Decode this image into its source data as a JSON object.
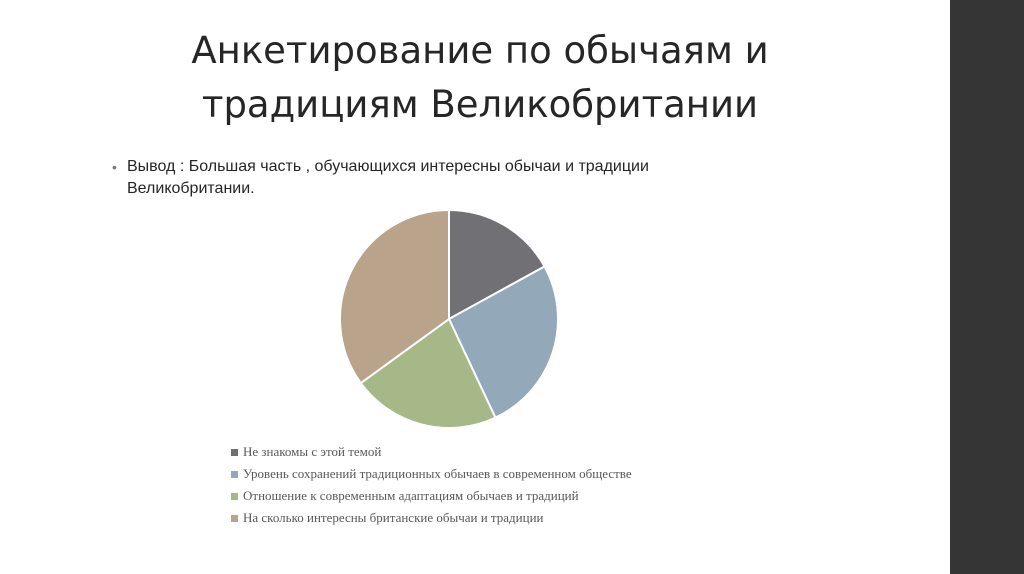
{
  "slide": {
    "title_line1": "Анкетирование по обычаям и",
    "title_line2": "традициям Великобритании",
    "bullet_symbol": "•",
    "bullet_line1": "Вывод : Большая часть , обучающихся интересны обычаи и традиции",
    "bullet_line2": "Великобритании."
  },
  "chart_data": {
    "type": "pie",
    "title": "",
    "legend_position": "bottom",
    "start_angle_deg": 0,
    "direction": "clockwise",
    "categories": [
      "Не знакомы с этой темой",
      "Уровень сохранений традиционных обычаев в современном обществе",
      "Отношение к современным адаптациям обычаев и традиций",
      "На сколько интересны британские обычаи и традиции"
    ],
    "values": [
      17,
      26,
      22,
      35
    ],
    "colors": [
      "#717075",
      "#93a8b8",
      "#a6b888",
      "#b9a48b"
    ]
  }
}
